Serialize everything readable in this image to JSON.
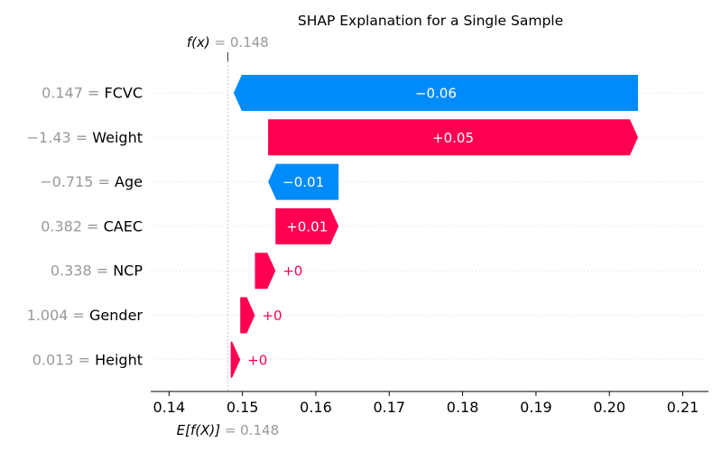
{
  "chart_data": {
    "type": "waterfall",
    "title": "SHAP Explanation for a Single Sample",
    "fx": {
      "label": "f(x)",
      "value_text": "= 0.148",
      "value": 0.148
    },
    "base": {
      "label": "E[f(X)]",
      "value_text": "= 0.148",
      "value": 0.148
    },
    "xlim": [
      0.1375,
      0.2135
    ],
    "xticks": [
      0.14,
      0.15,
      0.16,
      0.17,
      0.18,
      0.19,
      0.2,
      0.21
    ],
    "xtick_labels": [
      "0.14",
      "0.15",
      "0.16",
      "0.17",
      "0.18",
      "0.19",
      "0.20",
      "0.21"
    ],
    "grid": "dotted horizontal per feature",
    "features": [
      {
        "name": "FCVC",
        "value_text": "0.147 =",
        "start": 0.2039,
        "end": 0.1488,
        "label": "−0.06"
      },
      {
        "name": "Weight",
        "value_text": "−1.43 =",
        "start": 0.1535,
        "end": 0.2039,
        "label": "+0.05"
      },
      {
        "name": "Age",
        "value_text": "−0.715 =",
        "start": 0.1631,
        "end": 0.1535,
        "label": "−0.01"
      },
      {
        "name": "CAEC",
        "value_text": "0.382 =",
        "start": 0.1545,
        "end": 0.1631,
        "label": "+0.01"
      },
      {
        "name": "NCP",
        "value_text": "0.338 =",
        "start": 0.1517,
        "end": 0.1545,
        "label": "+0"
      },
      {
        "name": "Gender",
        "value_text": "1.004 =",
        "start": 0.1497,
        "end": 0.1517,
        "label": "+0"
      },
      {
        "name": "Height",
        "value_text": "0.013 =",
        "start": 0.1484,
        "end": 0.1497,
        "label": "+0"
      }
    ],
    "colors": {
      "positive": "#ff0051",
      "negative": "#008bfb",
      "muted": "#999999",
      "text": "#000000"
    }
  }
}
